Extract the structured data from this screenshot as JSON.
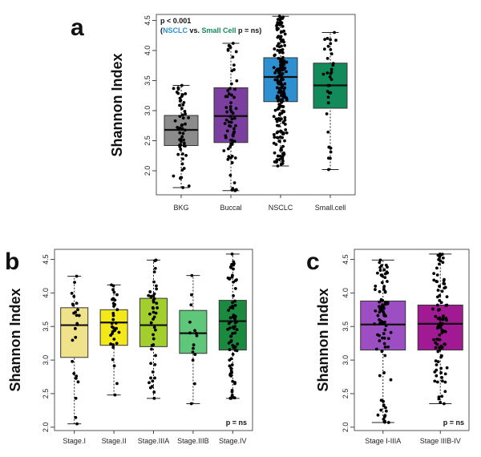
{
  "figure": {
    "panel_labels": [
      "a",
      "b",
      "c"
    ]
  },
  "chart_data": [
    {
      "panel": "a",
      "type": "box",
      "title": "",
      "ylabel": "Shannon Index",
      "xlabel": "",
      "ylim": [
        1.6,
        4.6
      ],
      "yticks": [
        2.0,
        2.5,
        3.0,
        3.5,
        4.0,
        4.5
      ],
      "categories": [
        "BKG",
        "Buccal",
        "NSCLC",
        "Small.cell"
      ],
      "colors": [
        "#8c8c8c",
        "#7b3fa0",
        "#2e8fd1",
        "#138a5a"
      ],
      "boxes": [
        {
          "name": "BKG",
          "whisker_low": 1.72,
          "q1": 2.42,
          "median": 2.68,
          "q3": 2.92,
          "whisker_high": 3.42,
          "n_points": 60
        },
        {
          "name": "Buccal",
          "whisker_low": 1.67,
          "q1": 2.47,
          "median": 2.91,
          "q3": 3.38,
          "whisker_high": 4.12,
          "n_points": 70
        },
        {
          "name": "NSCLC",
          "whisker_low": 2.08,
          "q1": 3.15,
          "median": 3.56,
          "q3": 3.88,
          "whisker_high": 4.57,
          "n_points": 220
        },
        {
          "name": "Small.cell",
          "whisker_low": 2.02,
          "q1": 3.04,
          "median": 3.42,
          "q3": 3.79,
          "whisker_high": 4.3,
          "n_points": 35
        }
      ],
      "annotation": {
        "line1": "p < 0.001",
        "open": "(",
        "nsclc": "NSCLC",
        "vs": " vs. ",
        "small_cell": "Small Cell",
        "rest": " p = ns)"
      }
    },
    {
      "panel": "b",
      "type": "box",
      "title": "",
      "ylabel": "Shannon Index",
      "xlabel": "",
      "ylim": [
        1.95,
        4.65
      ],
      "yticks": [
        2.0,
        2.5,
        3.0,
        3.5,
        4.0,
        4.5
      ],
      "categories": [
        "Stage.I",
        "Stage.II",
        "Stage.IIIA",
        "Stage.IIIB",
        "Stage.IV"
      ],
      "colors": [
        "#efe28a",
        "#f2e81a",
        "#a2cf2e",
        "#5fc77a",
        "#1b8a3f"
      ],
      "boxes": [
        {
          "name": "Stage.I",
          "whisker_low": 2.05,
          "q1": 3.04,
          "median": 3.52,
          "q3": 3.78,
          "whisker_high": 4.25,
          "n_points": 25
        },
        {
          "name": "Stage.II",
          "whisker_low": 2.48,
          "q1": 3.22,
          "median": 3.56,
          "q3": 3.75,
          "whisker_high": 4.12,
          "n_points": 35
        },
        {
          "name": "Stage.IIIA",
          "whisker_low": 2.43,
          "q1": 3.2,
          "median": 3.52,
          "q3": 3.92,
          "whisker_high": 4.49,
          "n_points": 45
        },
        {
          "name": "Stage.IIIB",
          "whisker_low": 2.35,
          "q1": 3.1,
          "median": 3.4,
          "q3": 3.74,
          "whisker_high": 4.26,
          "n_points": 15
        },
        {
          "name": "Stage.IV",
          "whisker_low": 2.43,
          "q1": 3.15,
          "median": 3.58,
          "q3": 3.89,
          "whisker_high": 4.58,
          "n_points": 80
        }
      ],
      "annotation": "p = ns"
    },
    {
      "panel": "c",
      "type": "box",
      "title": "",
      "ylabel": "Shannon Index",
      "xlabel": "",
      "ylim": [
        1.95,
        4.65
      ],
      "yticks": [
        2.0,
        2.5,
        3.0,
        3.5,
        4.0,
        4.5
      ],
      "categories": [
        "Stage I-IIIA",
        "Stage IIIB-IV"
      ],
      "colors": [
        "#9c4fc2",
        "#a11a94"
      ],
      "boxes": [
        {
          "name": "Stage I-IIIA",
          "whisker_low": 2.07,
          "q1": 3.15,
          "median": 3.53,
          "q3": 3.88,
          "whisker_high": 4.49,
          "n_points": 95
        },
        {
          "name": "Stage IIIB-IV",
          "whisker_low": 2.35,
          "q1": 3.15,
          "median": 3.54,
          "q3": 3.82,
          "whisker_high": 4.58,
          "n_points": 95
        }
      ],
      "annotation": "p = ns"
    }
  ]
}
